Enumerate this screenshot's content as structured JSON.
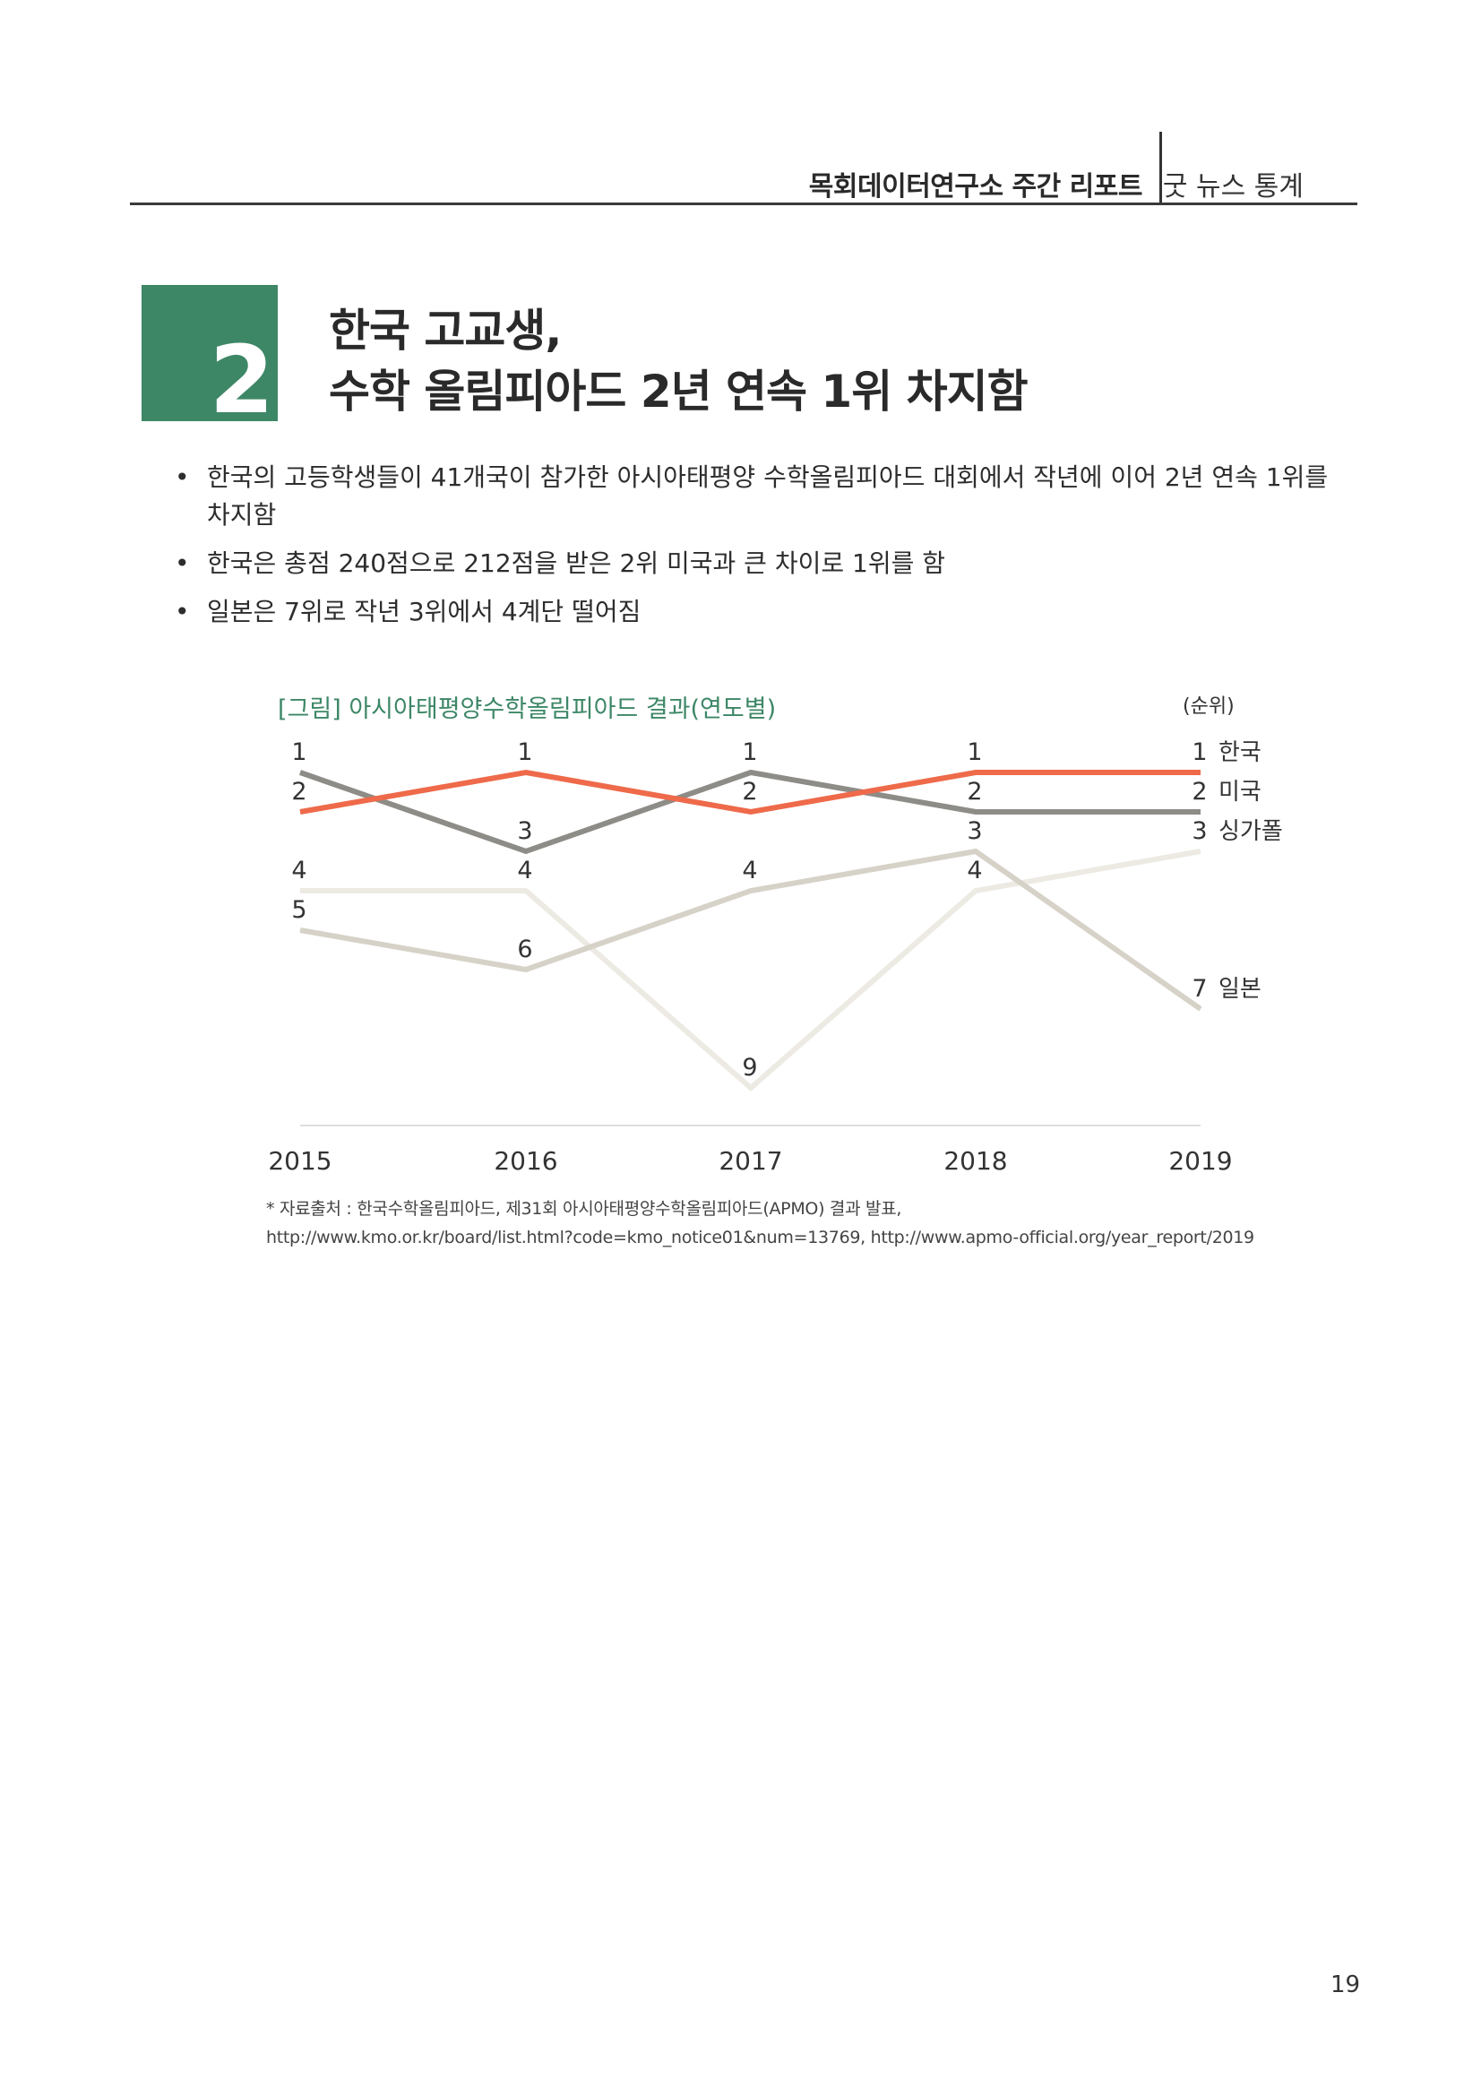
{
  "header": {
    "report_title": "목회데이터연구소 주간 리포트",
    "section": "굿 뉴스 통계"
  },
  "section_number": "2",
  "title": {
    "line1": "한국 고교생,",
    "line2": "수학 올림피아드 2년 연속 1위 차지함"
  },
  "bullets": [
    "한국의 고등학생들이 41개국이 참가한 아시아태평양 수학올림피아드 대회에서 작년에 이어 2년 연속 1위를 차지함",
    "한국은 총점 240점으로 212점을 받은 2위 미국과 큰 차이로 1위를 함",
    "일본은 7위로 작년 3위에서 4계단 떨어짐"
  ],
  "colors": {
    "accent_green": "#3d8766",
    "korea": "#ee6a4a",
    "usa": "#8e8c86",
    "singapore": "#eceae3",
    "japan": "#d6d2c8"
  },
  "chart_data": {
    "type": "line",
    "title": "[그림] 아시아태평양수학올림피아드 결과(연도별)",
    "unit_label": "(순위)",
    "x": [
      "2015",
      "2016",
      "2017",
      "2018",
      "2019"
    ],
    "y_inverted": true,
    "ylim": [
      1,
      9
    ],
    "grid": false,
    "series": [
      {
        "name": "한국",
        "values": [
          2,
          1,
          2,
          1,
          1
        ]
      },
      {
        "name": "미국",
        "values": [
          1,
          3,
          1,
          2,
          2
        ]
      },
      {
        "name": "싱가폴",
        "values": [
          4,
          4,
          9,
          4,
          3
        ]
      },
      {
        "name": "일본",
        "values": [
          5,
          6,
          4,
          3,
          7
        ]
      }
    ]
  },
  "source": {
    "line1": "* 자료출처 : 한국수학올림피아드, 제31회 아시아태평양수학올림피아드(APMO) 결과 발표,",
    "line2": "http://www.kmo.or.kr/board/list.html?code=kmo_notice01&num=13769, http://www.apmo-official.org/year_report/2019"
  },
  "page_number": "19"
}
